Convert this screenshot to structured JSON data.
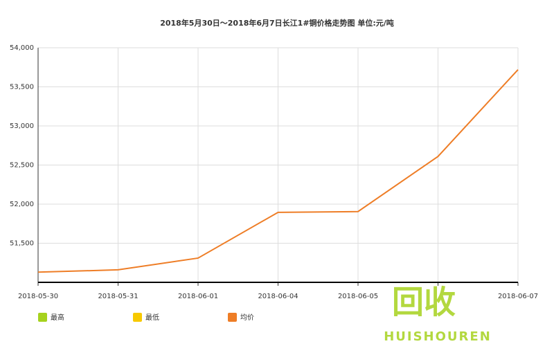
{
  "chart_data": {
    "type": "line",
    "title": "2018年5月30日～2018年6月7日长江1#铜价格走势图 单位:元/吨",
    "categories": [
      "2018-05-30",
      "2018-05-31",
      "2018-06-01",
      "2018-06-04",
      "2018-06-05",
      null,
      "2018-06-07"
    ],
    "series": [
      {
        "name": "最高",
        "color": "#a6d21e",
        "values": [
          null,
          null,
          null,
          null,
          null,
          null,
          null
        ]
      },
      {
        "name": "最低",
        "color": "#f7c900",
        "values": [
          null,
          null,
          null,
          null,
          null,
          null,
          null
        ]
      },
      {
        "name": "均价",
        "color": "#ee7d26",
        "values": [
          51130,
          51160,
          51310,
          51895,
          51905,
          52610,
          53720
        ]
      }
    ],
    "ylim": [
      51000,
      54000
    ],
    "yticks": [
      {
        "value": 51500,
        "label": "51,500"
      },
      {
        "value": 52000,
        "label": "52,000"
      },
      {
        "value": 52500,
        "label": "52,500"
      },
      {
        "value": 53000,
        "label": "53,000"
      },
      {
        "value": 53500,
        "label": "53,500"
      },
      {
        "value": 54000,
        "label": "54,000"
      }
    ],
    "grid": true,
    "watermark": [
      "回收",
      "HUISHOUREN"
    ]
  }
}
